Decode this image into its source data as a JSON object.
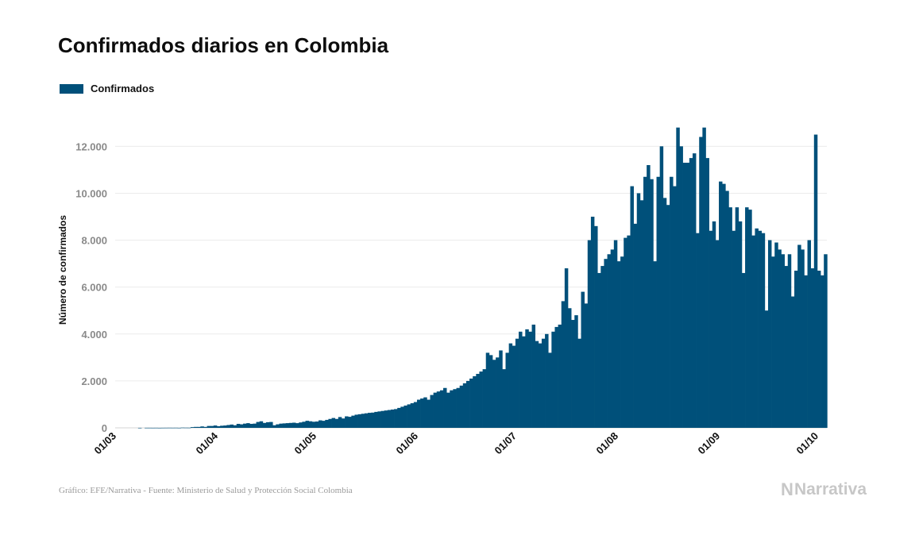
{
  "chart_data": {
    "type": "bar",
    "title": "Confirmados diarios en Colombia",
    "ylabel": "Número de confirmados",
    "xlabel": "",
    "series": [
      {
        "name": "Confirmados",
        "color": "#00507a"
      }
    ],
    "ylim": [
      0,
      13500
    ],
    "yticks": [
      {
        "value": 0,
        "label": "0"
      },
      {
        "value": 2000,
        "label": "2.000"
      },
      {
        "value": 4000,
        "label": "4.000"
      },
      {
        "value": 6000,
        "label": "6.000"
      },
      {
        "value": 8000,
        "label": "8.000"
      },
      {
        "value": 10000,
        "label": "10.000"
      },
      {
        "value": 12000,
        "label": "12.000"
      }
    ],
    "xticks": [
      {
        "day": 0,
        "label": "01/03"
      },
      {
        "day": 31,
        "label": "01/04"
      },
      {
        "day": 61,
        "label": "01/05"
      },
      {
        "day": 92,
        "label": "01/06"
      },
      {
        "day": 122,
        "label": "01/07"
      },
      {
        "day": 153,
        "label": "01/08"
      },
      {
        "day": 184,
        "label": "01/09"
      },
      {
        "day": 214,
        "label": "01/10"
      }
    ],
    "grid": true,
    "legend": "top-left",
    "values": [
      0,
      0,
      0,
      0,
      0,
      0,
      1,
      0,
      3,
      3,
      2,
      3,
      1,
      3,
      4,
      5,
      4,
      5,
      2,
      10,
      8,
      7,
      30,
      40,
      40,
      60,
      40,
      80,
      80,
      100,
      70,
      90,
      100,
      120,
      140,
      110,
      170,
      150,
      180,
      200,
      170,
      180,
      250,
      280,
      210,
      240,
      250,
      110,
      150,
      180,
      190,
      200,
      210,
      220,
      200,
      230,
      260,
      300,
      280,
      260,
      270,
      320,
      300,
      340,
      380,
      420,
      380,
      460,
      400,
      490,
      470,
      520,
      560,
      580,
      600,
      620,
      640,
      650,
      680,
      700,
      720,
      740,
      760,
      780,
      800,
      850,
      900,
      950,
      1000,
      1050,
      1100,
      1200,
      1250,
      1300,
      1200,
      1400,
      1500,
      1550,
      1600,
      1700,
      1500,
      1600,
      1650,
      1700,
      1800,
      1900,
      2000,
      2100,
      2200,
      2300,
      2400,
      2500,
      3200,
      3100,
      2900,
      3000,
      3300,
      2500,
      3200,
      3600,
      3500,
      3800,
      4100,
      3900,
      4200,
      4100,
      4400,
      3700,
      3600,
      3800,
      4000,
      3200,
      4100,
      4300,
      4400,
      5400,
      6800,
      5100,
      4600,
      4800,
      3800,
      5800,
      5300,
      8000,
      9000,
      8600,
      6600,
      6900,
      7200,
      7400,
      7600,
      8000,
      7100,
      7300,
      8100,
      8200,
      10300,
      8700,
      10000,
      9700,
      10700,
      11200,
      10600,
      7100,
      10700,
      12000,
      9800,
      9500,
      10700,
      10300,
      12800,
      12000,
      11300,
      11300,
      11500,
      11700,
      8300,
      12400,
      12800,
      11500,
      8400,
      8800,
      8000,
      10500,
      10400,
      10100,
      9400,
      8400,
      9400,
      8800,
      6600,
      9400,
      9300,
      8200,
      8500,
      8400,
      8300,
      5000,
      8000,
      7300,
      7900,
      7600,
      7400,
      6900,
      7400,
      5600,
      6700,
      7800,
      7600,
      6500,
      8000,
      6800,
      12500,
      6700,
      6500,
      7400
    ]
  },
  "source_note": "Gráfico: EFE/Narrativa - Fuente: Ministerio de Salud y Protección Social Colombia",
  "brand": {
    "name": "Narrativa",
    "mark": "N"
  }
}
